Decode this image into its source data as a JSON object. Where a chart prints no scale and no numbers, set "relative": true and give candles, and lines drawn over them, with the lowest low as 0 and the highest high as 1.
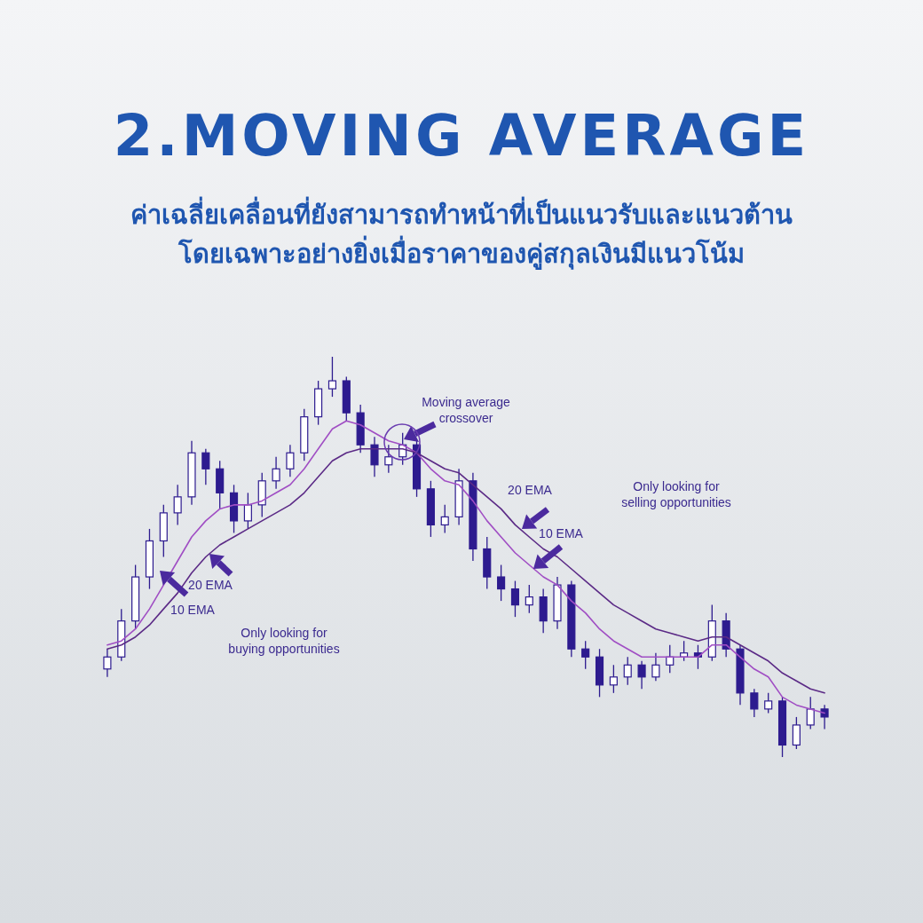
{
  "chart_data": {
    "type": "candlestick",
    "title": "2.MOVING AVERAGE",
    "subtitle": "ค่าเฉลี่ยเคลื่อนที่ยังสามารถทำหน้าที่เป็นแนวรับและแนวต้าน\nโดยเฉพาะอย่างยิ่งเมื่อราคาของคู่สกุลเงินมีแนวโน้ม",
    "relative": true,
    "color": "#2d1b8f",
    "categories": [
      null,
      null,
      null,
      null,
      null,
      null,
      null,
      null,
      null,
      null,
      null,
      null,
      null,
      null,
      null,
      null,
      null,
      null,
      null,
      null,
      null,
      null,
      null,
      null,
      null,
      null,
      null,
      null,
      null,
      null,
      null,
      null,
      null,
      null,
      null,
      null,
      null,
      null,
      null,
      null,
      null,
      null,
      null,
      null,
      null,
      null,
      null,
      null,
      null,
      null,
      null,
      null
    ],
    "ohlc": [
      [
        0.22,
        0.27,
        0.2,
        0.25
      ],
      [
        0.25,
        0.37,
        0.24,
        0.34
      ],
      [
        0.34,
        0.48,
        0.32,
        0.45
      ],
      [
        0.45,
        0.57,
        0.42,
        0.54
      ],
      [
        0.54,
        0.63,
        0.5,
        0.61
      ],
      [
        0.61,
        0.68,
        0.58,
        0.65
      ],
      [
        0.65,
        0.79,
        0.63,
        0.76
      ],
      [
        0.76,
        0.77,
        0.68,
        0.72
      ],
      [
        0.72,
        0.74,
        0.62,
        0.66
      ],
      [
        0.66,
        0.68,
        0.56,
        0.59
      ],
      [
        0.59,
        0.66,
        0.57,
        0.63
      ],
      [
        0.63,
        0.71,
        0.6,
        0.69
      ],
      [
        0.69,
        0.75,
        0.67,
        0.72
      ],
      [
        0.72,
        0.78,
        0.7,
        0.76
      ],
      [
        0.76,
        0.87,
        0.74,
        0.85
      ],
      [
        0.85,
        0.94,
        0.83,
        0.92
      ],
      [
        0.92,
        1.0,
        0.9,
        0.94
      ],
      [
        0.94,
        0.95,
        0.84,
        0.86
      ],
      [
        0.86,
        0.88,
        0.76,
        0.78
      ],
      [
        0.78,
        0.8,
        0.7,
        0.73
      ],
      [
        0.73,
        0.78,
        0.71,
        0.75
      ],
      [
        0.75,
        0.81,
        0.73,
        0.78
      ],
      [
        0.78,
        0.79,
        0.65,
        0.67
      ],
      [
        0.67,
        0.69,
        0.55,
        0.58
      ],
      [
        0.58,
        0.63,
        0.56,
        0.6
      ],
      [
        0.6,
        0.72,
        0.58,
        0.69
      ],
      [
        0.69,
        0.71,
        0.49,
        0.52
      ],
      [
        0.52,
        0.55,
        0.42,
        0.45
      ],
      [
        0.45,
        0.48,
        0.39,
        0.42
      ],
      [
        0.42,
        0.44,
        0.35,
        0.38
      ],
      [
        0.38,
        0.43,
        0.36,
        0.4
      ],
      [
        0.4,
        0.42,
        0.31,
        0.34
      ],
      [
        0.34,
        0.45,
        0.32,
        0.43
      ],
      [
        0.43,
        0.44,
        0.25,
        0.27
      ],
      [
        0.27,
        0.29,
        0.22,
        0.25
      ],
      [
        0.25,
        0.27,
        0.15,
        0.18
      ],
      [
        0.18,
        0.23,
        0.16,
        0.2
      ],
      [
        0.2,
        0.25,
        0.18,
        0.23
      ],
      [
        0.23,
        0.24,
        0.17,
        0.2
      ],
      [
        0.2,
        0.26,
        0.19,
        0.23
      ],
      [
        0.23,
        0.28,
        0.21,
        0.25
      ],
      [
        0.25,
        0.29,
        0.24,
        0.26
      ],
      [
        0.26,
        0.28,
        0.22,
        0.25
      ],
      [
        0.25,
        0.38,
        0.24,
        0.34
      ],
      [
        0.34,
        0.36,
        0.25,
        0.27
      ],
      [
        0.27,
        0.28,
        0.13,
        0.16
      ],
      [
        0.16,
        0.17,
        0.1,
        0.12
      ],
      [
        0.12,
        0.16,
        0.11,
        0.14
      ],
      [
        0.14,
        0.15,
        0.0,
        0.03
      ],
      [
        0.03,
        0.1,
        0.02,
        0.08
      ],
      [
        0.08,
        0.15,
        0.07,
        0.12
      ],
      [
        0.12,
        0.13,
        0.07,
        0.1
      ]
    ],
    "series": [
      {
        "type": "line",
        "color": "#a04ec4",
        "values": [
          0.28,
          0.29,
          0.32,
          0.37,
          0.43,
          0.49,
          0.55,
          0.59,
          0.62,
          0.63,
          0.63,
          0.64,
          0.66,
          0.68,
          0.72,
          0.77,
          0.82,
          0.84,
          0.83,
          0.81,
          0.79,
          0.78,
          0.76,
          0.72,
          0.69,
          0.68,
          0.64,
          0.59,
          0.55,
          0.51,
          0.48,
          0.45,
          0.43,
          0.39,
          0.36,
          0.32,
          0.29,
          0.27,
          0.25,
          0.25,
          0.25,
          0.25,
          0.25,
          0.28,
          0.28,
          0.25,
          0.22,
          0.2,
          0.15,
          0.13,
          0.12,
          0.11
        ]
      },
      {
        "type": "line",
        "color": "#5b2a86",
        "values": [
          0.27,
          0.28,
          0.3,
          0.33,
          0.37,
          0.41,
          0.46,
          0.5,
          0.53,
          0.55,
          0.57,
          0.59,
          0.61,
          0.63,
          0.66,
          0.7,
          0.74,
          0.76,
          0.77,
          0.77,
          0.77,
          0.77,
          0.76,
          0.74,
          0.72,
          0.71,
          0.68,
          0.65,
          0.62,
          0.58,
          0.55,
          0.52,
          0.5,
          0.47,
          0.44,
          0.41,
          0.38,
          0.36,
          0.34,
          0.32,
          0.31,
          0.3,
          0.29,
          0.3,
          0.3,
          0.28,
          0.26,
          0.24,
          0.21,
          0.19,
          0.17,
          0.16
        ]
      }
    ],
    "annotations": [
      "Moving average\ncrossover",
      "20 EMA",
      "10 EMA",
      "Only looking for\nbuying opportunities",
      "20 EMA",
      "10 EMA",
      "Only looking for\nselling opportunities"
    ]
  }
}
